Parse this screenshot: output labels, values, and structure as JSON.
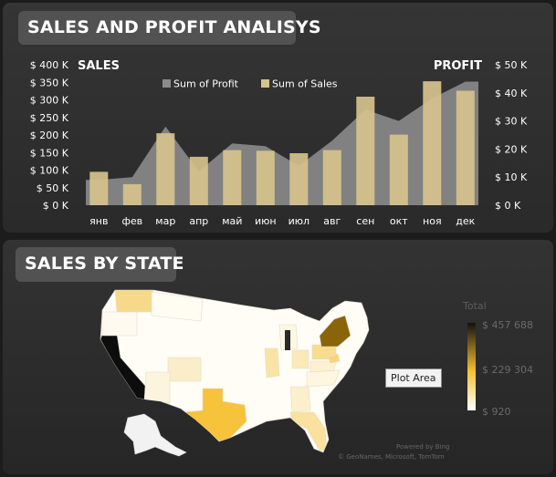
{
  "sales_profit_panel": {
    "title": "SALES AND PROFIT ANALISYS",
    "left_axis_title": "SALES",
    "right_axis_title": "PROFIT",
    "legend": {
      "profit_label": "Sum of Profit",
      "sales_label": "Sum of Sales"
    }
  },
  "colors": {
    "sales_bar": "#d6c38c",
    "profit_area": "#8b8b8b",
    "panel_bg": "#2e2e2e",
    "title_bg": "#525252"
  },
  "chart_data": {
    "type": "bar",
    "categories": [
      "янв",
      "фев",
      "мар",
      "апр",
      "май",
      "июн",
      "июл",
      "авг",
      "сен",
      "окт",
      "ноя",
      "дек"
    ],
    "series": [
      {
        "name": "Sum of Sales",
        "type": "bar",
        "axis": "left",
        "values": [
          95,
          60,
          205,
          138,
          157,
          155,
          148,
          157,
          309,
          201,
          353,
          326
        ]
      },
      {
        "name": "Sum of Profit",
        "type": "area",
        "axis": "right",
        "values": [
          9,
          10,
          28,
          12,
          22,
          21,
          14,
          23,
          34,
          30,
          38,
          44
        ]
      }
    ],
    "left_ticks": [
      "$ 0 K",
      "$ 50 K",
      "$ 100 K",
      "$ 150 K",
      "$ 200 K",
      "$ 250 K",
      "$ 300 K",
      "$ 350 K",
      "$ 400 K"
    ],
    "right_ticks": [
      "$ 0 K",
      "$ 10 K",
      "$ 20 K",
      "$ 30 K",
      "$ 40 K",
      "$ 50 K"
    ],
    "ylim_left": [
      0,
      400
    ],
    "ylim_right": [
      0,
      50
    ],
    "grid": false,
    "legend_position": "top"
  },
  "map_panel": {
    "title": "SALES BY STATE",
    "legend_title": "Total",
    "legend_max": "$ 457 688",
    "legend_mid": "$ 229 304",
    "legend_min": "$ 920",
    "tooltip": "Plot Area",
    "powered_by": "Powered by Bing",
    "copyright": "© GeoNames, Microsoft, TomTom"
  }
}
